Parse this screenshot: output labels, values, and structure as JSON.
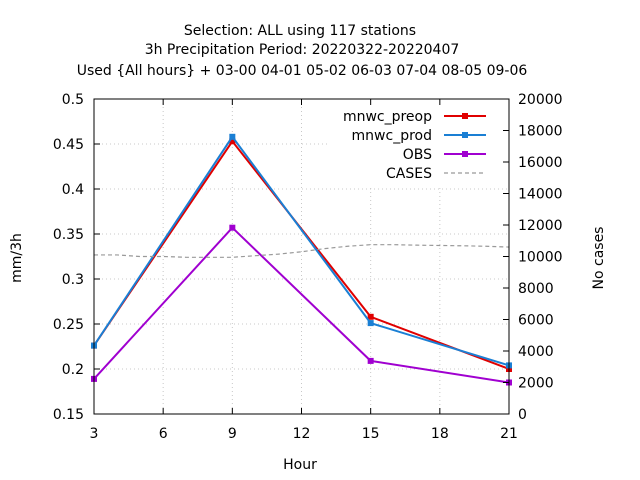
{
  "chart_data": {
    "type": "line",
    "title_lines": [
      "Selection: ALL using   117 stations",
      "3h Precipitation    Period: 20220322-20220407",
      "Used {All hours} + 03-00 04-01 05-02 06-03 07-04 08-05 09-06"
    ],
    "xlabel": "Hour",
    "ylabel": "mm/3h",
    "y2label": "No cases",
    "xlim": [
      3,
      21
    ],
    "ylim": [
      0.15,
      0.5
    ],
    "y2lim": [
      0,
      20000
    ],
    "x_ticks": [
      "3",
      "6",
      "9",
      "12",
      "15",
      "18",
      "21"
    ],
    "y_ticks": [
      "0.15",
      "0.2",
      "0.25",
      "0.3",
      "0.35",
      "0.4",
      "0.45",
      "0.5"
    ],
    "y2_ticks": [
      "0",
      "2000",
      "4000",
      "6000",
      "8000",
      "10000",
      "12000",
      "14000",
      "16000",
      "18000",
      "20000"
    ],
    "legend_position": "top-right",
    "series": [
      {
        "name": "mnwc_preop",
        "axis": "y1",
        "color": "#e00000",
        "x": [
          3,
          9,
          15,
          21
        ],
        "values": [
          0.226,
          0.453,
          0.258,
          0.2
        ]
      },
      {
        "name": "mnwc_prod",
        "axis": "y1",
        "color": "#1a7fd4",
        "x": [
          3,
          9,
          15,
          21
        ],
        "values": [
          0.226,
          0.458,
          0.251,
          0.204
        ]
      },
      {
        "name": "OBS",
        "axis": "y1",
        "color": "#a000d0",
        "x": [
          3,
          9,
          15,
          21
        ],
        "values": [
          0.189,
          0.357,
          0.209,
          0.185
        ]
      },
      {
        "name": "CASES",
        "axis": "y2",
        "color": "#999999",
        "dashed": true,
        "x": [
          3,
          4,
          5,
          6,
          7,
          8,
          9,
          10,
          11,
          12,
          13,
          14,
          15,
          16,
          17,
          18,
          19,
          20,
          21
        ],
        "values": [
          10100,
          10100,
          10000,
          10000,
          9950,
          9950,
          9950,
          10050,
          10150,
          10300,
          10500,
          10650,
          10750,
          10750,
          10720,
          10700,
          10680,
          10650,
          10600
        ]
      }
    ]
  }
}
